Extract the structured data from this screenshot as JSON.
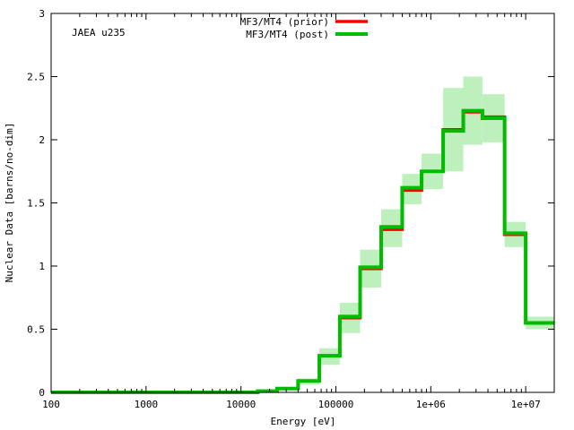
{
  "chart_data": {
    "type": "line",
    "annotation": "JAEA u235",
    "xlabel": "Energy [eV]",
    "ylabel": "Nuclear Data [barns/no-dim]",
    "xscale": "log",
    "xlim": [
      100,
      20000000
    ],
    "ylim": [
      0,
      3
    ],
    "grid": false,
    "legend_position": "top-center",
    "xticks": [
      {
        "value": 100,
        "label": "100"
      },
      {
        "value": 1000,
        "label": "1000"
      },
      {
        "value": 10000,
        "label": "10000"
      },
      {
        "value": 100000,
        "label": "100000"
      },
      {
        "value": 1000000,
        "label": "1e+06"
      },
      {
        "value": 10000000,
        "label": "1e+07"
      }
    ],
    "yticks": [
      {
        "value": 0,
        "label": "0"
      },
      {
        "value": 0.5,
        "label": "0.5"
      },
      {
        "value": 1,
        "label": "1"
      },
      {
        "value": 1.5,
        "label": "1.5"
      },
      {
        "value": 2,
        "label": "2"
      },
      {
        "value": 2.5,
        "label": "2.5"
      },
      {
        "value": 3,
        "label": "3"
      }
    ],
    "bin_edges": [
      100,
      15000,
      24000,
      40000,
      67000,
      110000,
      180000,
      300000,
      500000,
      800000,
      1350000,
      2200000,
      3500000,
      6000000,
      10000000,
      20000000
    ],
    "series": [
      {
        "name": "MF3/MT4 (prior)",
        "color": "#ff0000",
        "values": [
          0.0,
          0.01,
          0.03,
          0.09,
          0.29,
          0.59,
          0.98,
          1.29,
          1.6,
          1.75,
          2.08,
          2.22,
          2.18,
          1.25,
          0.55
        ],
        "uncertainty_band": {
          "color": "#bdf0bd",
          "low": [
            0.0,
            0.0,
            0.02,
            0.06,
            0.22,
            0.47,
            0.83,
            1.15,
            1.49,
            1.61,
            1.75,
            1.96,
            1.98,
            1.15,
            0.5
          ],
          "high": [
            0.0,
            0.02,
            0.04,
            0.11,
            0.35,
            0.71,
            1.13,
            1.45,
            1.73,
            1.89,
            2.41,
            2.5,
            2.36,
            1.35,
            0.6
          ]
        }
      },
      {
        "name": "MF3/MT4 (post)",
        "color": "#00bb00",
        "values": [
          0.0,
          0.01,
          0.03,
          0.09,
          0.29,
          0.6,
          0.99,
          1.31,
          1.62,
          1.75,
          2.07,
          2.23,
          2.17,
          1.26,
          0.55
        ]
      }
    ]
  }
}
